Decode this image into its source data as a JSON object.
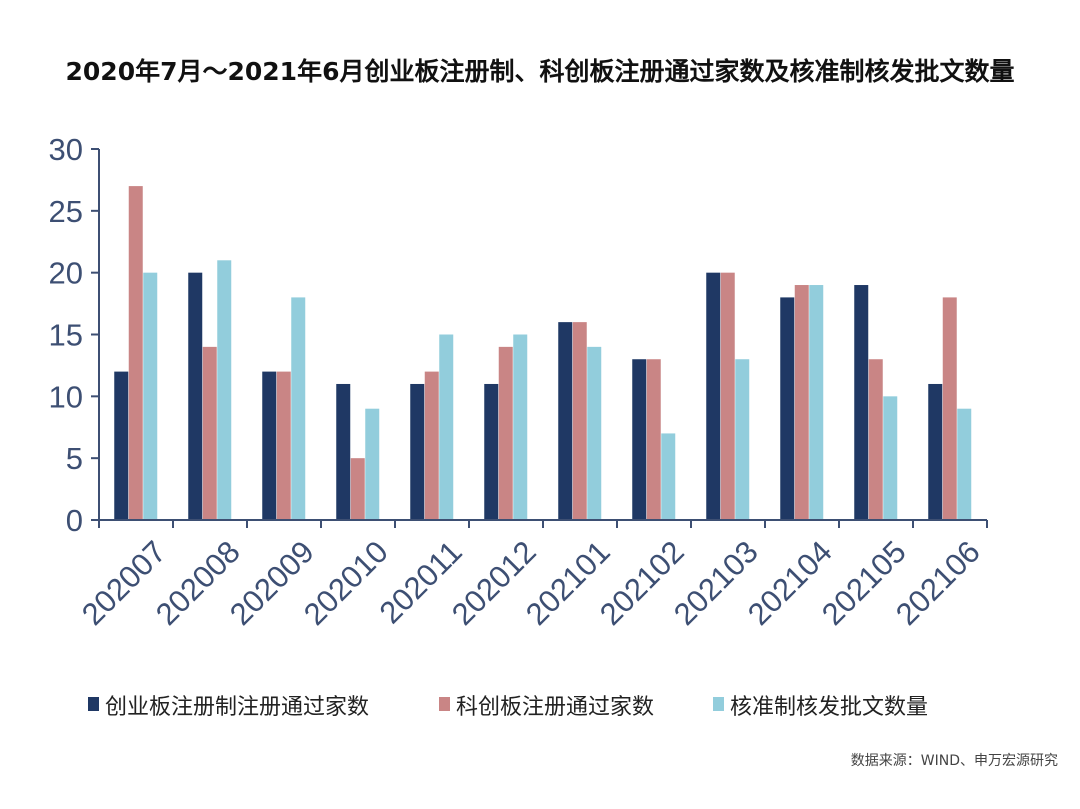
{
  "chart_data": {
    "type": "bar",
    "title": "2020年7月～2021年6月创业板注册制、科创板注册通过家数及核准制核发批文数量",
    "categories": [
      "202007",
      "202008",
      "202009",
      "202010",
      "202011",
      "202012",
      "202101",
      "202102",
      "202103",
      "202104",
      "202105",
      "202106"
    ],
    "series": [
      {
        "name": "创业板注册制注册通过家数",
        "color": "#1f3864",
        "values": [
          12,
          20,
          12,
          11,
          11,
          11,
          16,
          13,
          20,
          18,
          19,
          11
        ]
      },
      {
        "name": "科创板注册通过家数",
        "color": "#c98585",
        "values": [
          27,
          14,
          12,
          5,
          12,
          14,
          16,
          13,
          20,
          19,
          13,
          18
        ]
      },
      {
        "name": "核准制核发批文数量",
        "color": "#92cddc",
        "values": [
          20,
          21,
          18,
          9,
          15,
          15,
          14,
          7,
          13,
          19,
          10,
          9
        ]
      }
    ],
    "ylim": [
      0,
      30
    ],
    "yticks": [
      0,
      5,
      10,
      15,
      20,
      25,
      30
    ],
    "legend_position": "bottom",
    "grid": false,
    "axis_color": "#3d4f73"
  },
  "source": "数据来源：WIND、申万宏源研究"
}
